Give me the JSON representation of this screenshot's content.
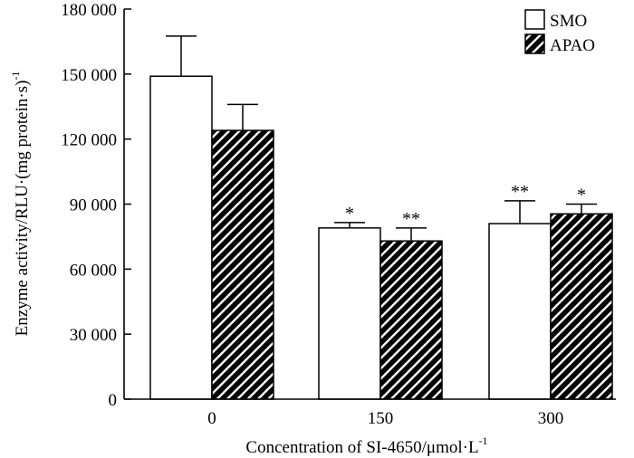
{
  "chart_data": {
    "type": "bar",
    "categories": [
      "0",
      "150",
      "300"
    ],
    "series": [
      {
        "name": "SMO",
        "values": [
          149000,
          79000,
          81000
        ],
        "errors": [
          18500,
          2500,
          10500
        ],
        "significance": [
          "",
          "*",
          "**"
        ],
        "fill": "white"
      },
      {
        "name": "APAO",
        "values": [
          124000,
          73000,
          85500
        ],
        "errors": [
          12000,
          6000,
          4500
        ],
        "significance": [
          "",
          "**",
          "*"
        ],
        "fill": "hatch"
      }
    ],
    "xlabel_main": "Concentration of SI-4650/μmol·L",
    "xlabel_sup": "-1",
    "ylabel_main": "Enzyme activity/RLU·(mg protein·s)",
    "ylabel_sup": "-1",
    "ylim": [
      0,
      180000
    ],
    "yticks": [
      0,
      30000,
      60000,
      90000,
      120000,
      150000,
      180000
    ],
    "ytick_labels": [
      "0",
      "30 000",
      "60 000",
      "90 000",
      "120 000",
      "150 000",
      "180 000"
    ],
    "legend_position": "top-right",
    "grid": false
  }
}
